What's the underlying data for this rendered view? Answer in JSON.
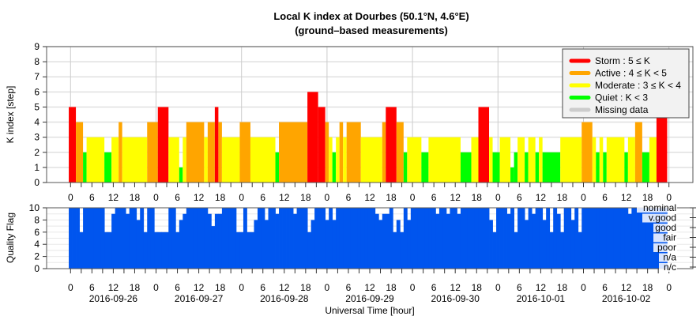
{
  "title": {
    "line1": "Local K index at Dourbes (50.1°N, 4.6°E)",
    "line2": "(ground–based measurements)"
  },
  "colors": {
    "storm": "#ff0000",
    "active": "#ffa500",
    "moderate": "#ffff00",
    "quiet": "#00ff00",
    "missing": "#cccccc",
    "quality": "#0055ee"
  },
  "chart_data": [
    {
      "type": "bar",
      "title": "Local K index at Dourbes (50.1°N, 4.6°E) (ground–based measurements)",
      "ylabel": "K index [step]",
      "xlabel": "Universal Time [hour]",
      "ylim": [
        0,
        9
      ],
      "yticks": [
        "0",
        "1",
        "2",
        "3",
        "4",
        "5",
        "6",
        "7",
        "8",
        "9"
      ],
      "xlim_hours": [
        -7,
        175
      ],
      "start_date": "2016-09-26",
      "legend_position": "top-right",
      "legend": [
        {
          "key": "storm",
          "label": "Storm : 5 ≤ K"
        },
        {
          "key": "active",
          "label": "Active : 4 ≤ K < 5"
        },
        {
          "key": "moderate",
          "label": "Moderate : 3 ≤ K < 4"
        },
        {
          "key": "quiet",
          "label": "Quiet : K < 3"
        },
        {
          "key": "missing",
          "label": "Missing data"
        }
      ],
      "segments_start_end_k": [
        [
          -0.5,
          1.5,
          5
        ],
        [
          1.5,
          3.5,
          4
        ],
        [
          3.5,
          4.5,
          2
        ],
        [
          4.5,
          9.5,
          3
        ],
        [
          9.5,
          11.5,
          2
        ],
        [
          11.5,
          13.5,
          3
        ],
        [
          13.5,
          14.5,
          4
        ],
        [
          14.5,
          21.5,
          3
        ],
        [
          21.5,
          24.5,
          4
        ],
        [
          24.5,
          27.5,
          5
        ],
        [
          27.5,
          30.5,
          3
        ],
        [
          30.5,
          31.5,
          1
        ],
        [
          31.5,
          32.5,
          3
        ],
        [
          32.5,
          37.5,
          4
        ],
        [
          37.5,
          38.5,
          3
        ],
        [
          38.5,
          40.5,
          4
        ],
        [
          40.5,
          41.5,
          5
        ],
        [
          41.5,
          42.5,
          4
        ],
        [
          42.5,
          47.5,
          3
        ],
        [
          47.5,
          50.5,
          4
        ],
        [
          50.5,
          57.5,
          3
        ],
        [
          57.5,
          58.5,
          2
        ],
        [
          58.5,
          66.5,
          4
        ],
        [
          66.5,
          69.5,
          6
        ],
        [
          69.5,
          71.5,
          5
        ],
        [
          71.5,
          72.5,
          4
        ],
        [
          72.5,
          73.5,
          3
        ],
        [
          73.5,
          74.5,
          2
        ],
        [
          74.5,
          75.5,
          3
        ],
        [
          75.5,
          76.5,
          4
        ],
        [
          76.5,
          77.5,
          3
        ],
        [
          77.5,
          81.5,
          4
        ],
        [
          81.5,
          87.5,
          3
        ],
        [
          87.5,
          88.5,
          4
        ],
        [
          88.5,
          91.5,
          5
        ],
        [
          91.5,
          93.5,
          4
        ],
        [
          93.5,
          94.5,
          2
        ],
        [
          94.5,
          98.5,
          3
        ],
        [
          98.5,
          100.5,
          2
        ],
        [
          100.5,
          109.5,
          3
        ],
        [
          109.5,
          112.5,
          2
        ],
        [
          112.5,
          114.5,
          3
        ],
        [
          114.5,
          117.5,
          5
        ],
        [
          117.5,
          118.5,
          3
        ],
        [
          118.5,
          120.5,
          2
        ],
        [
          120.5,
          123.5,
          3
        ],
        [
          123.5,
          124.5,
          1
        ],
        [
          124.5,
          125.5,
          2
        ],
        [
          125.5,
          127.5,
          3
        ],
        [
          127.5,
          128.5,
          2
        ],
        [
          128.5,
          130.5,
          3
        ],
        [
          130.5,
          131.5,
          2
        ],
        [
          131.5,
          132.5,
          3
        ],
        [
          132.5,
          137.5,
          2
        ],
        [
          137.5,
          143.5,
          3
        ],
        [
          143.5,
          146.5,
          4
        ],
        [
          146.5,
          147.5,
          3
        ],
        [
          147.5,
          148.5,
          2
        ],
        [
          148.5,
          149.5,
          3
        ],
        [
          149.5,
          150.5,
          2
        ],
        [
          150.5,
          155.5,
          3
        ],
        [
          155.5,
          156.5,
          2
        ],
        [
          156.5,
          158.5,
          3
        ],
        [
          158.5,
          160.5,
          4
        ],
        [
          160.5,
          162.5,
          2
        ],
        [
          162.5,
          164.5,
          3
        ],
        [
          164.5,
          167.5,
          5
        ]
      ]
    },
    {
      "type": "bar",
      "ylabel": "Quality Flag",
      "ylim": [
        0,
        10
      ],
      "yticks": [
        "0",
        "2",
        "4",
        "6",
        "8",
        "10"
      ],
      "hours_range": [
        0,
        167
      ],
      "default_value": 10,
      "dips_hour_value": [
        [
          3,
          6
        ],
        [
          10,
          6
        ],
        [
          11,
          6
        ],
        [
          12,
          9
        ],
        [
          16,
          9
        ],
        [
          19,
          8
        ],
        [
          21,
          6
        ],
        [
          24,
          6
        ],
        [
          25,
          6
        ],
        [
          26,
          6
        ],
        [
          27,
          6
        ],
        [
          30,
          6
        ],
        [
          31,
          8
        ],
        [
          32,
          9
        ],
        [
          39,
          9
        ],
        [
          40,
          7
        ],
        [
          41,
          9
        ],
        [
          42,
          9
        ],
        [
          47,
          6
        ],
        [
          48,
          6
        ],
        [
          50,
          6
        ],
        [
          51,
          6
        ],
        [
          52,
          8
        ],
        [
          55,
          8
        ],
        [
          58,
          9
        ],
        [
          63,
          9
        ],
        [
          67,
          6
        ],
        [
          68,
          8
        ],
        [
          72,
          8
        ],
        [
          74,
          8
        ],
        [
          86,
          9
        ],
        [
          87,
          8
        ],
        [
          88,
          9
        ],
        [
          89,
          9
        ],
        [
          91,
          6
        ],
        [
          92,
          8
        ],
        [
          93,
          6
        ],
        [
          95,
          8
        ],
        [
          103,
          9
        ],
        [
          106,
          9
        ],
        [
          109,
          9
        ],
        [
          118,
          8
        ],
        [
          119,
          6
        ],
        [
          123,
          9
        ],
        [
          125,
          6
        ],
        [
          128,
          8
        ],
        [
          130,
          9
        ],
        [
          133,
          8
        ],
        [
          135,
          6
        ],
        [
          137,
          9
        ],
        [
          138,
          6
        ],
        [
          141,
          8
        ],
        [
          143,
          6
        ],
        [
          157,
          9
        ]
      ],
      "flag_labels": [
        "nominal",
        "v.good",
        "good",
        "fair",
        "poor",
        "n/a",
        "n/c"
      ]
    }
  ],
  "hour_ticks": [
    "0",
    "6",
    "12",
    "18"
  ],
  "dates": [
    "2016-09-26",
    "2016-09-27",
    "2016-09-28",
    "2016-09-29",
    "2016-09-30",
    "2016-10-01",
    "2016-10-02"
  ]
}
